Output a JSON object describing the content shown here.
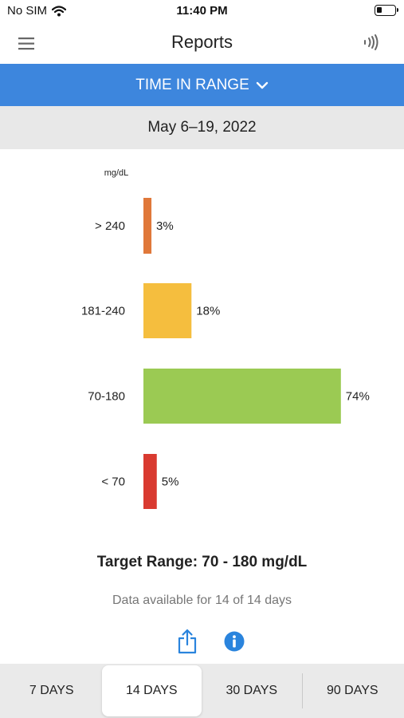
{
  "status_bar": {
    "carrier": "No SIM",
    "time": "11:40 PM",
    "wifi_icon": "wifi-icon",
    "battery_icon": "battery-icon",
    "battery_level": 0.3
  },
  "nav": {
    "title": "Reports",
    "menu_icon": "hamburger-menu-icon",
    "nfc_icon": "nfc-scan-icon"
  },
  "report_selector": {
    "label": "TIME IN RANGE",
    "icon": "chevron-down-icon"
  },
  "date_range": "May 6–19, 2022",
  "chart_data": {
    "type": "bar",
    "orientation": "horizontal",
    "unit_label": "mg/dL",
    "categories": [
      "> 240",
      "181-240",
      "70-180",
      "< 70"
    ],
    "values": [
      3,
      18,
      74,
      5
    ],
    "value_labels": [
      "3%",
      "18%",
      "74%",
      "5%"
    ],
    "colors": [
      "#e0783a",
      "#f5be3e",
      "#9bca53",
      "#d93a30"
    ],
    "xlim": [
      0,
      100
    ]
  },
  "target_range": "Target Range: 70 - 180 mg/dL",
  "availability": "Data available for 14 of 14 days",
  "actions": {
    "share_icon": "share-icon",
    "info_icon": "info-icon"
  },
  "periods": [
    {
      "label": "7 DAYS",
      "selected": false
    },
    {
      "label": "14 DAYS",
      "selected": true
    },
    {
      "label": "30 DAYS",
      "selected": false
    },
    {
      "label": "90 DAYS",
      "selected": false
    }
  ],
  "colors": {
    "accent": "#3d86dd",
    "info": "#2a84dd"
  }
}
